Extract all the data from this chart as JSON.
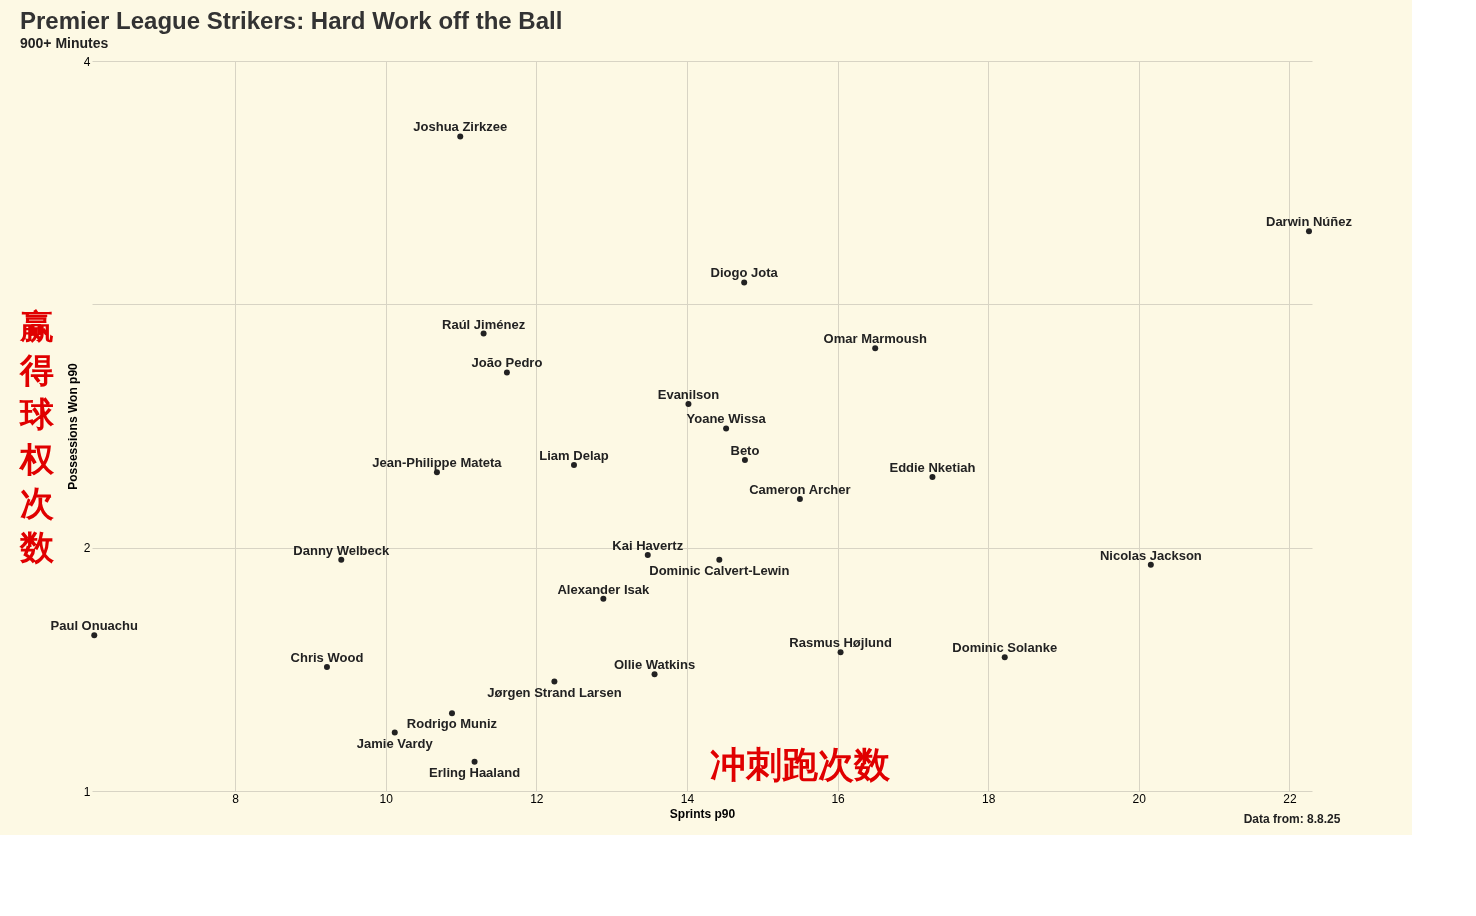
{
  "chart_data": {
    "type": "scatter",
    "title": "Premier League Strikers: Hard Work off the Ball",
    "subtitle": "900+ Minutes",
    "xlabel": "Sprints p90",
    "ylabel": "Possessions Won p90",
    "xlim": [
      6.1,
      22.3
    ],
    "ylim": [
      1,
      4
    ],
    "xticks": [
      8,
      10,
      12,
      14,
      16,
      18,
      20,
      22
    ],
    "yticks": [
      1,
      2,
      {
        "value": 3,
        "label": null
      },
      4
    ],
    "grid": true,
    "legend": false,
    "marker": "circle",
    "annotations": [
      "赢得球权次数",
      "冲刺跑次数",
      "Data from: 8.8.25"
    ],
    "series": [
      {
        "name": "Joshua Zirkzee",
        "color": "#222222",
        "x": [
          10.99
        ],
        "values": [
          3.69
        ]
      },
      {
        "name": "Darwin Núñez",
        "color": "#222222",
        "x": [
          22.26
        ],
        "values": [
          3.3
        ]
      },
      {
        "name": "Diogo Jota",
        "color": "#222222",
        "x": [
          14.76
        ],
        "values": [
          3.09
        ]
      },
      {
        "name": "Raúl Jiménez",
        "color": "#222222",
        "x": [
          11.3
        ],
        "values": [
          2.88
        ]
      },
      {
        "name": "Omar Marmoush",
        "color": "#222222",
        "x": [
          16.5
        ],
        "values": [
          2.82
        ]
      },
      {
        "name": "João Pedro",
        "color": "#222222",
        "x": [
          11.61
        ],
        "values": [
          2.72
        ]
      },
      {
        "name": "Evanilson",
        "color": "#222222",
        "x": [
          14.02
        ],
        "values": [
          2.59
        ]
      },
      {
        "name": "Yoane Wissa",
        "color": "#222222",
        "x": [
          14.52
        ],
        "values": [
          2.49
        ]
      },
      {
        "name": "Beto",
        "color": "#222222",
        "x": [
          14.77
        ],
        "values": [
          2.36
        ]
      },
      {
        "name": "Liam Delap",
        "color": "#222222",
        "x": [
          12.5
        ],
        "values": [
          2.34
        ]
      },
      {
        "name": "Jean-Philippe Mateta",
        "color": "#222222",
        "x": [
          10.68
        ],
        "values": [
          2.31
        ]
      },
      {
        "name": "Eddie Nketiah",
        "color": "#222222",
        "x": [
          17.26
        ],
        "values": [
          2.29
        ]
      },
      {
        "name": "Cameron Archer",
        "color": "#222222",
        "x": [
          15.5
        ],
        "values": [
          2.2
        ]
      },
      {
        "name": "Kai Havertz",
        "color": "#222222",
        "x": [
          13.48
        ],
        "values": [
          1.97
        ]
      },
      {
        "name": "Dominic Calvert-Lewin",
        "color": "#222222",
        "x": [
          14.43
        ],
        "values": [
          1.95
        ]
      },
      {
        "name": "Danny Welbeck",
        "color": "#222222",
        "x": [
          9.41
        ],
        "values": [
          1.95
        ]
      },
      {
        "name": "Nicolas Jackson",
        "color": "#222222",
        "x": [
          20.16
        ],
        "values": [
          1.93
        ]
      },
      {
        "name": "Alexander Isak",
        "color": "#222222",
        "x": [
          12.89
        ],
        "values": [
          1.79
        ]
      },
      {
        "name": "Paul Onuachu",
        "color": "#222222",
        "x": [
          6.13
        ],
        "values": [
          1.64
        ]
      },
      {
        "name": "Rasmus Højlund",
        "color": "#222222",
        "x": [
          16.04
        ],
        "values": [
          1.57
        ]
      },
      {
        "name": "Dominic Solanke",
        "color": "#222222",
        "x": [
          18.22
        ],
        "values": [
          1.55
        ]
      },
      {
        "name": "Chris Wood",
        "color": "#222222",
        "x": [
          9.22
        ],
        "values": [
          1.51
        ]
      },
      {
        "name": "Ollie Watkins",
        "color": "#222222",
        "x": [
          13.57
        ],
        "values": [
          1.48
        ]
      },
      {
        "name": "Jørgen Strand Larsen",
        "color": "#222222",
        "x": [
          12.24
        ],
        "values": [
          1.45
        ]
      },
      {
        "name": "Rodrigo Muniz",
        "color": "#222222",
        "x": [
          10.88
        ],
        "values": [
          1.32
        ]
      },
      {
        "name": "Jamie Vardy",
        "color": "#222222",
        "x": [
          10.12
        ],
        "values": [
          1.24
        ]
      },
      {
        "name": "Erling Haaland",
        "color": "#222222",
        "x": [
          11.18
        ],
        "values": [
          1.12
        ]
      }
    ]
  }
}
